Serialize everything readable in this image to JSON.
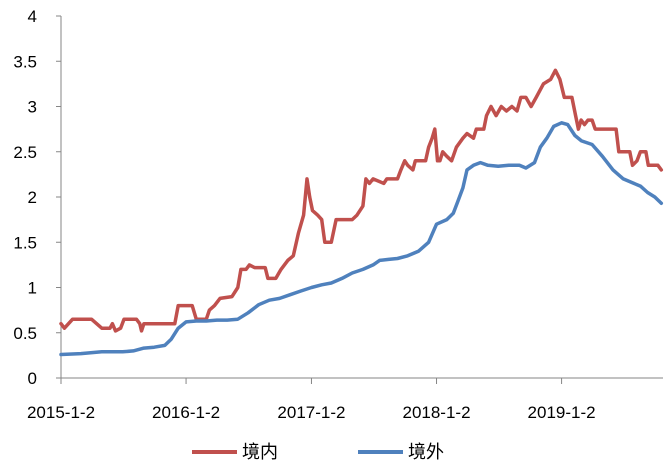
{
  "chart_data": {
    "type": "line",
    "title": "",
    "xlabel": "",
    "ylabel": "",
    "ylim": [
      0,
      4
    ],
    "yticks": [
      "0",
      "0.5",
      "1",
      "1.5",
      "2",
      "2.5",
      "3",
      "3.5",
      "4"
    ],
    "xticks": [
      "2015-1-2",
      "2016-1-2",
      "2017-1-2",
      "2018-1-2",
      "2019-1-2"
    ],
    "xlim": [
      "2015-1-2",
      "2019-10-25"
    ],
    "grid": false,
    "legend_position": "bottom",
    "series": [
      {
        "name": "境内",
        "color": "#C0504D",
        "points": [
          [
            "2015-01-02",
            0.6
          ],
          [
            "2015-01-12",
            0.55
          ],
          [
            "2015-02-05",
            0.65
          ],
          [
            "2015-04-01",
            0.65
          ],
          [
            "2015-05-01",
            0.55
          ],
          [
            "2015-05-25",
            0.55
          ],
          [
            "2015-06-01",
            0.6
          ],
          [
            "2015-06-10",
            0.52
          ],
          [
            "2015-06-25",
            0.55
          ],
          [
            "2015-07-05",
            0.65
          ],
          [
            "2015-08-10",
            0.65
          ],
          [
            "2015-08-20",
            0.6
          ],
          [
            "2015-08-25",
            0.52
          ],
          [
            "2015-09-01",
            0.6
          ],
          [
            "2015-10-01",
            0.6
          ],
          [
            "2015-11-01",
            0.6
          ],
          [
            "2015-11-30",
            0.6
          ],
          [
            "2015-12-10",
            0.8
          ],
          [
            "2016-01-20",
            0.8
          ],
          [
            "2016-02-01",
            0.65
          ],
          [
            "2016-03-01",
            0.65
          ],
          [
            "2016-03-10",
            0.75
          ],
          [
            "2016-03-25",
            0.8
          ],
          [
            "2016-04-10",
            0.88
          ],
          [
            "2016-05-15",
            0.9
          ],
          [
            "2016-06-01",
            1.0
          ],
          [
            "2016-06-10",
            1.2
          ],
          [
            "2016-06-25",
            1.2
          ],
          [
            "2016-07-05",
            1.25
          ],
          [
            "2016-07-20",
            1.22
          ],
          [
            "2016-08-20",
            1.22
          ],
          [
            "2016-08-28",
            1.1
          ],
          [
            "2016-09-20",
            1.1
          ],
          [
            "2016-10-05",
            1.2
          ],
          [
            "2016-10-15",
            1.25
          ],
          [
            "2016-10-25",
            1.3
          ],
          [
            "2016-11-10",
            1.35
          ],
          [
            "2016-11-25",
            1.6
          ],
          [
            "2016-12-10",
            1.8
          ],
          [
            "2016-12-20",
            2.2
          ],
          [
            "2016-12-28",
            2.0
          ],
          [
            "2017-01-05",
            1.85
          ],
          [
            "2017-01-20",
            1.8
          ],
          [
            "2017-02-01",
            1.75
          ],
          [
            "2017-02-10",
            1.5
          ],
          [
            "2017-03-01",
            1.5
          ],
          [
            "2017-03-15",
            1.75
          ],
          [
            "2017-05-01",
            1.75
          ],
          [
            "2017-05-15",
            1.8
          ],
          [
            "2017-06-01",
            1.9
          ],
          [
            "2017-06-10",
            2.2
          ],
          [
            "2017-06-20",
            2.15
          ],
          [
            "2017-07-01",
            2.2
          ],
          [
            "2017-08-01",
            2.15
          ],
          [
            "2017-08-10",
            2.2
          ],
          [
            "2017-09-10",
            2.2
          ],
          [
            "2017-09-20",
            2.3
          ],
          [
            "2017-10-01",
            2.4
          ],
          [
            "2017-10-10",
            2.35
          ],
          [
            "2017-10-25",
            2.3
          ],
          [
            "2017-11-01",
            2.4
          ],
          [
            "2017-12-01",
            2.4
          ],
          [
            "2017-12-10",
            2.55
          ],
          [
            "2017-12-20",
            2.65
          ],
          [
            "2017-12-28",
            2.75
          ],
          [
            "2018-01-05",
            2.4
          ],
          [
            "2018-01-12",
            2.4
          ],
          [
            "2018-01-20",
            2.5
          ],
          [
            "2018-02-01",
            2.45
          ],
          [
            "2018-02-15",
            2.4
          ],
          [
            "2018-03-01",
            2.55
          ],
          [
            "2018-03-20",
            2.65
          ],
          [
            "2018-04-01",
            2.7
          ],
          [
            "2018-04-20",
            2.65
          ],
          [
            "2018-04-28",
            2.75
          ],
          [
            "2018-05-20",
            2.75
          ],
          [
            "2018-05-28",
            2.9
          ],
          [
            "2018-06-10",
            3.0
          ],
          [
            "2018-06-25",
            2.9
          ],
          [
            "2018-07-10",
            3.0
          ],
          [
            "2018-07-25",
            2.95
          ],
          [
            "2018-08-10",
            3.0
          ],
          [
            "2018-08-25",
            2.95
          ],
          [
            "2018-09-05",
            3.1
          ],
          [
            "2018-09-20",
            3.1
          ],
          [
            "2018-10-05",
            3.0
          ],
          [
            "2018-10-20",
            3.1
          ],
          [
            "2018-11-10",
            3.25
          ],
          [
            "2018-12-01",
            3.3
          ],
          [
            "2018-12-15",
            3.4
          ],
          [
            "2018-12-28",
            3.3
          ],
          [
            "2019-01-10",
            3.1
          ],
          [
            "2019-02-01",
            3.1
          ],
          [
            "2019-02-12",
            2.9
          ],
          [
            "2019-02-20",
            2.75
          ],
          [
            "2019-02-28",
            2.85
          ],
          [
            "2019-03-10",
            2.8
          ],
          [
            "2019-03-20",
            2.85
          ],
          [
            "2019-04-01",
            2.85
          ],
          [
            "2019-04-10",
            2.75
          ],
          [
            "2019-06-10",
            2.75
          ],
          [
            "2019-06-18",
            2.5
          ],
          [
            "2019-07-20",
            2.5
          ],
          [
            "2019-07-28",
            2.35
          ],
          [
            "2019-08-10",
            2.4
          ],
          [
            "2019-08-20",
            2.5
          ],
          [
            "2019-09-05",
            2.5
          ],
          [
            "2019-09-12",
            2.35
          ],
          [
            "2019-10-10",
            2.35
          ],
          [
            "2019-10-20",
            2.3
          ]
        ]
      },
      {
        "name": "境外",
        "color": "#4F81BD",
        "points": [
          [
            "2015-01-02",
            0.26
          ],
          [
            "2015-03-01",
            0.27
          ],
          [
            "2015-05-01",
            0.29
          ],
          [
            "2015-07-01",
            0.29
          ],
          [
            "2015-08-01",
            0.3
          ],
          [
            "2015-09-01",
            0.33
          ],
          [
            "2015-10-01",
            0.34
          ],
          [
            "2015-11-01",
            0.36
          ],
          [
            "2015-11-20",
            0.43
          ],
          [
            "2015-12-10",
            0.55
          ],
          [
            "2016-01-02",
            0.62
          ],
          [
            "2016-02-01",
            0.63
          ],
          [
            "2016-03-01",
            0.63
          ],
          [
            "2016-04-01",
            0.64
          ],
          [
            "2016-05-01",
            0.64
          ],
          [
            "2016-06-01",
            0.65
          ],
          [
            "2016-07-01",
            0.72
          ],
          [
            "2016-08-01",
            0.81
          ],
          [
            "2016-09-01",
            0.86
          ],
          [
            "2016-10-01",
            0.88
          ],
          [
            "2016-11-01",
            0.92
          ],
          [
            "2016-12-01",
            0.96
          ],
          [
            "2017-01-02",
            1.0
          ],
          [
            "2017-02-01",
            1.03
          ],
          [
            "2017-03-01",
            1.05
          ],
          [
            "2017-04-01",
            1.1
          ],
          [
            "2017-05-01",
            1.16
          ],
          [
            "2017-06-01",
            1.2
          ],
          [
            "2017-07-01",
            1.25
          ],
          [
            "2017-07-20",
            1.3
          ],
          [
            "2017-08-15",
            1.31
          ],
          [
            "2017-09-10",
            1.32
          ],
          [
            "2017-10-10",
            1.35
          ],
          [
            "2017-11-10",
            1.4
          ],
          [
            "2017-12-10",
            1.5
          ],
          [
            "2018-01-02",
            1.7
          ],
          [
            "2018-02-01",
            1.75
          ],
          [
            "2018-02-20",
            1.82
          ],
          [
            "2018-03-05",
            1.95
          ],
          [
            "2018-03-20",
            2.1
          ],
          [
            "2018-04-01",
            2.3
          ],
          [
            "2018-04-20",
            2.35
          ],
          [
            "2018-05-10",
            2.38
          ],
          [
            "2018-06-01",
            2.35
          ],
          [
            "2018-07-01",
            2.34
          ],
          [
            "2018-08-01",
            2.35
          ],
          [
            "2018-09-01",
            2.35
          ],
          [
            "2018-09-20",
            2.32
          ],
          [
            "2018-10-15",
            2.38
          ],
          [
            "2018-11-01",
            2.55
          ],
          [
            "2018-11-20",
            2.65
          ],
          [
            "2018-12-10",
            2.78
          ],
          [
            "2019-01-02",
            2.82
          ],
          [
            "2019-01-20",
            2.8
          ],
          [
            "2019-02-10",
            2.68
          ],
          [
            "2019-03-01",
            2.62
          ],
          [
            "2019-04-01",
            2.58
          ],
          [
            "2019-05-01",
            2.45
          ],
          [
            "2019-06-01",
            2.3
          ],
          [
            "2019-07-01",
            2.2
          ],
          [
            "2019-08-01",
            2.15
          ],
          [
            "2019-08-20",
            2.12
          ],
          [
            "2019-09-10",
            2.05
          ],
          [
            "2019-10-01",
            2.0
          ],
          [
            "2019-10-20",
            1.93
          ]
        ]
      }
    ]
  }
}
